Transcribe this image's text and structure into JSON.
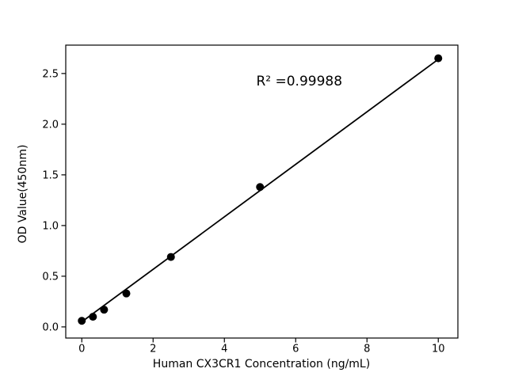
{
  "figure": {
    "background": "#ffffff"
  },
  "chart_data": {
    "type": "scatter",
    "title": "",
    "xlabel": "Human CX3CR1 Concentration (ng/mL)",
    "ylabel": "OD Value(450nm)",
    "annotation": {
      "text": "R² =0.99988",
      "x": 6.1,
      "y": 2.42
    },
    "series": [
      {
        "name": "standard curve points",
        "type": "scatter",
        "marker": "circle",
        "marker_color": "#000000",
        "x": [
          0,
          0.3125,
          0.625,
          1.25,
          2.5,
          5,
          10
        ],
        "y": [
          0.06,
          0.1,
          0.17,
          0.33,
          0.69,
          1.38,
          2.65
        ]
      },
      {
        "name": "linear fit line",
        "type": "line",
        "line_color": "#000000",
        "x": [
          0,
          10
        ],
        "y": [
          0.05,
          2.64
        ]
      }
    ],
    "xticks": {
      "values": [
        0,
        2,
        4,
        6,
        8,
        10
      ],
      "labels": [
        "0",
        "2",
        "4",
        "6",
        "8",
        "10"
      ]
    },
    "yticks": {
      "values": [
        0,
        0.5,
        1.0,
        1.5,
        2.0,
        2.5
      ],
      "labels": [
        "0.0",
        "0.5",
        "1.0",
        "1.5",
        "2.0",
        "2.5"
      ]
    },
    "xlim": [
      -0.45,
      10.55
    ],
    "ylim": [
      -0.11,
      2.78
    ],
    "grid": false,
    "legend": "none",
    "axis_color": "#000000",
    "text_color": "#000000"
  }
}
